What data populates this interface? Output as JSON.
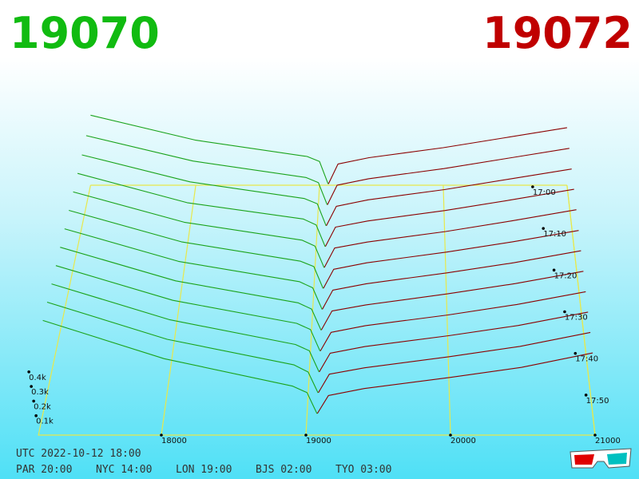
{
  "chart_data": {
    "type": "depth3d",
    "bid_price": 19070,
    "ask_price": 19072,
    "bid_color": "#1aa31a",
    "ask_color": "#8b0000",
    "price_color_bid": "#11bb11",
    "price_color_ask": "#c00000",
    "frame_color": "#e8e84a",
    "xlim": [
      17150,
      21000
    ],
    "xticks": [
      18000,
      19000,
      20000,
      21000
    ],
    "vticks": [
      {
        "value": 100,
        "label": "0.1k"
      },
      {
        "value": 200,
        "label": "0.2k"
      },
      {
        "value": 300,
        "label": "0.3k"
      },
      {
        "value": 400,
        "label": "0.4k"
      }
    ],
    "time_ticks": [
      "17:00",
      "17:10",
      "17:20",
      "17:30",
      "17:40",
      "17:50"
    ],
    "bid_prices": [
      17150,
      18000,
      18900,
      19000,
      19070
    ],
    "ask_prices": [
      19072,
      19150,
      19400,
      20000,
      20500,
      21000
    ],
    "snapshots": [
      {
        "bids": [
          560,
          360,
          230,
          190,
          10
        ],
        "asks": [
          10,
          170,
          220,
          300,
          380,
          460
        ]
      },
      {
        "bids": [
          555,
          355,
          225,
          185,
          10
        ],
        "asks": [
          10,
          165,
          215,
          295,
          375,
          455
        ]
      },
      {
        "bids": [
          560,
          350,
          220,
          180,
          8
        ],
        "asks": [
          9,
          160,
          210,
          290,
          370,
          450
        ]
      },
      {
        "bids": [
          570,
          345,
          220,
          175,
          8
        ],
        "asks": [
          9,
          158,
          205,
          285,
          365,
          448
        ]
      },
      {
        "bids": [
          580,
          350,
          215,
          170,
          6
        ],
        "asks": [
          8,
          155,
          200,
          280,
          360,
          445
        ]
      },
      {
        "bids": [
          590,
          355,
          210,
          170,
          6
        ],
        "asks": [
          8,
          150,
          198,
          278,
          355,
          440
        ]
      },
      {
        "bids": [
          600,
          360,
          210,
          165,
          5
        ],
        "asks": [
          7,
          148,
          195,
          275,
          350,
          438
        ]
      },
      {
        "bids": [
          610,
          365,
          205,
          160,
          5
        ],
        "asks": [
          7,
          145,
          190,
          270,
          345,
          435
        ]
      },
      {
        "bids": [
          620,
          370,
          205,
          160,
          5
        ],
        "asks": [
          6,
          140,
          188,
          265,
          340,
          432
        ]
      },
      {
        "bids": [
          630,
          375,
          200,
          155,
          4
        ],
        "asks": [
          6,
          138,
          185,
          262,
          335,
          430
        ]
      },
      {
        "bids": [
          640,
          380,
          200,
          150,
          4
        ],
        "asks": [
          5,
          135,
          180,
          258,
          330,
          428
        ]
      },
      {
        "bids": [
          650,
          385,
          195,
          150,
          4
        ],
        "asks": [
          5,
          130,
          178,
          255,
          325,
          425
        ]
      }
    ],
    "footer": {
      "utc": "UTC 2022-10-12 18:00",
      "clocks": [
        "PAR 20:00",
        "NYC 14:00",
        "LON 19:00",
        "BJS 02:00",
        "TYO 03:00"
      ]
    }
  }
}
